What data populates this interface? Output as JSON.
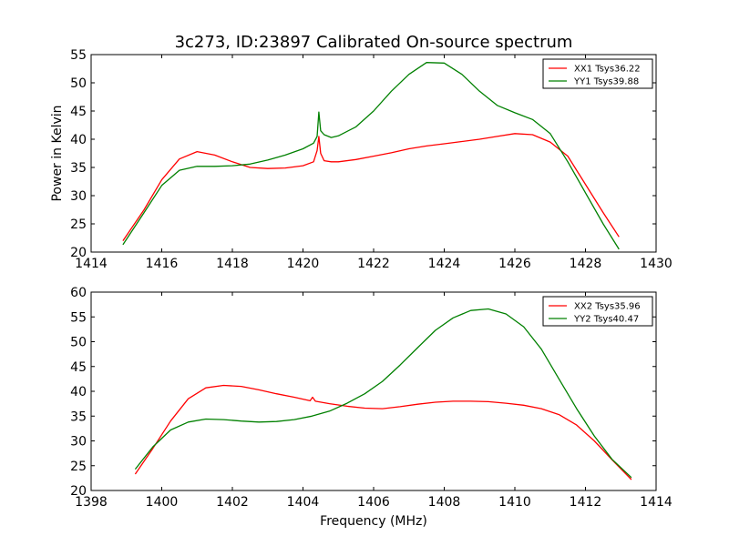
{
  "title": "3c273, ID:23897 Calibrated On-source spectrum",
  "xlabel": "Frequency (MHz)",
  "chart_data": [
    {
      "type": "line",
      "ylabel": "Power in Kelvin",
      "xlabel": "",
      "xlim": [
        1414,
        1430
      ],
      "ylim": [
        20,
        55
      ],
      "xticks": [
        1414,
        1416,
        1418,
        1420,
        1422,
        1424,
        1426,
        1428,
        1430
      ],
      "yticks": [
        20,
        25,
        30,
        35,
        40,
        45,
        50,
        55
      ],
      "legend_position": "top-right",
      "series": [
        {
          "name": "XX1 Tsys36.22",
          "color": "#ff0000",
          "x": [
            1414.9,
            1415.5,
            1416.0,
            1416.5,
            1417.0,
            1417.5,
            1418.0,
            1418.5,
            1419.0,
            1419.5,
            1420.0,
            1420.3,
            1420.4,
            1420.45,
            1420.5,
            1420.6,
            1420.8,
            1421.0,
            1421.5,
            1422.0,
            1422.5,
            1423.0,
            1423.5,
            1424.0,
            1424.5,
            1425.0,
            1425.5,
            1426.0,
            1426.5,
            1427.0,
            1427.5,
            1428.0,
            1428.5,
            1428.95
          ],
          "y": [
            22.0,
            27.5,
            32.8,
            36.5,
            37.8,
            37.2,
            36.0,
            35.0,
            34.8,
            34.9,
            35.3,
            36.0,
            38.0,
            40.5,
            37.5,
            36.2,
            36.0,
            36.0,
            36.4,
            37.0,
            37.6,
            38.3,
            38.8,
            39.2,
            39.6,
            40.0,
            40.5,
            41.0,
            40.8,
            39.5,
            37.0,
            32.0,
            27.0,
            22.7
          ]
        },
        {
          "name": "YY1 Tsys39.88",
          "color": "#008000",
          "x": [
            1414.9,
            1415.5,
            1416.0,
            1416.5,
            1417.0,
            1417.5,
            1418.0,
            1418.5,
            1419.0,
            1419.5,
            1420.0,
            1420.3,
            1420.4,
            1420.45,
            1420.5,
            1420.6,
            1420.8,
            1421.0,
            1421.5,
            1422.0,
            1422.5,
            1423.0,
            1423.5,
            1424.0,
            1424.5,
            1425.0,
            1425.5,
            1426.0,
            1426.5,
            1427.0,
            1427.5,
            1428.0,
            1428.5,
            1428.95
          ],
          "y": [
            21.3,
            27.0,
            31.8,
            34.5,
            35.2,
            35.2,
            35.3,
            35.6,
            36.3,
            37.2,
            38.3,
            39.3,
            40.5,
            44.8,
            41.5,
            40.8,
            40.3,
            40.6,
            42.2,
            45.0,
            48.5,
            51.5,
            53.6,
            53.5,
            51.5,
            48.5,
            46.0,
            44.7,
            43.5,
            41.0,
            36.0,
            30.5,
            25.0,
            20.5
          ]
        }
      ]
    },
    {
      "type": "line",
      "ylabel": "",
      "xlabel": "Frequency (MHz)",
      "xlim": [
        1398,
        1414
      ],
      "ylim": [
        20,
        60
      ],
      "xticks": [
        1398,
        1400,
        1402,
        1404,
        1406,
        1408,
        1410,
        1412,
        1414
      ],
      "yticks": [
        20,
        25,
        30,
        35,
        40,
        45,
        50,
        55,
        60
      ],
      "legend_position": "top-right",
      "series": [
        {
          "name": "XX2 Tsys35.96",
          "color": "#ff0000",
          "x": [
            1399.25,
            1399.75,
            1400.25,
            1400.75,
            1401.25,
            1401.75,
            1402.25,
            1402.75,
            1403.25,
            1403.75,
            1404.2,
            1404.27,
            1404.35,
            1404.75,
            1405.25,
            1405.75,
            1406.25,
            1406.75,
            1407.25,
            1407.75,
            1408.25,
            1408.75,
            1409.25,
            1409.75,
            1410.25,
            1410.75,
            1411.25,
            1411.75,
            1412.25,
            1412.75,
            1413.3
          ],
          "y": [
            23.3,
            28.5,
            34.0,
            38.5,
            40.7,
            41.2,
            41.0,
            40.3,
            39.5,
            38.8,
            38.1,
            38.8,
            38.0,
            37.5,
            37.0,
            36.6,
            36.5,
            36.9,
            37.4,
            37.8,
            38.0,
            38.0,
            37.9,
            37.6,
            37.2,
            36.5,
            35.3,
            33.2,
            30.0,
            26.2,
            22.2
          ]
        },
        {
          "name": "YY2 Tsys40.47",
          "color": "#008000",
          "x": [
            1399.25,
            1399.75,
            1400.25,
            1400.75,
            1401.25,
            1401.75,
            1402.25,
            1402.75,
            1403.25,
            1403.75,
            1404.25,
            1404.75,
            1405.25,
            1405.75,
            1406.25,
            1406.75,
            1407.25,
            1407.75,
            1408.25,
            1408.75,
            1409.25,
            1409.75,
            1410.25,
            1410.75,
            1411.25,
            1411.75,
            1412.25,
            1412.75,
            1413.3
          ],
          "y": [
            24.3,
            28.8,
            32.2,
            33.8,
            34.4,
            34.3,
            34.0,
            33.8,
            33.9,
            34.3,
            35.0,
            36.0,
            37.6,
            39.5,
            42.0,
            45.3,
            48.8,
            52.3,
            54.8,
            56.3,
            56.6,
            55.6,
            53.0,
            48.5,
            42.5,
            36.5,
            31.0,
            26.3,
            22.6
          ]
        }
      ]
    }
  ]
}
